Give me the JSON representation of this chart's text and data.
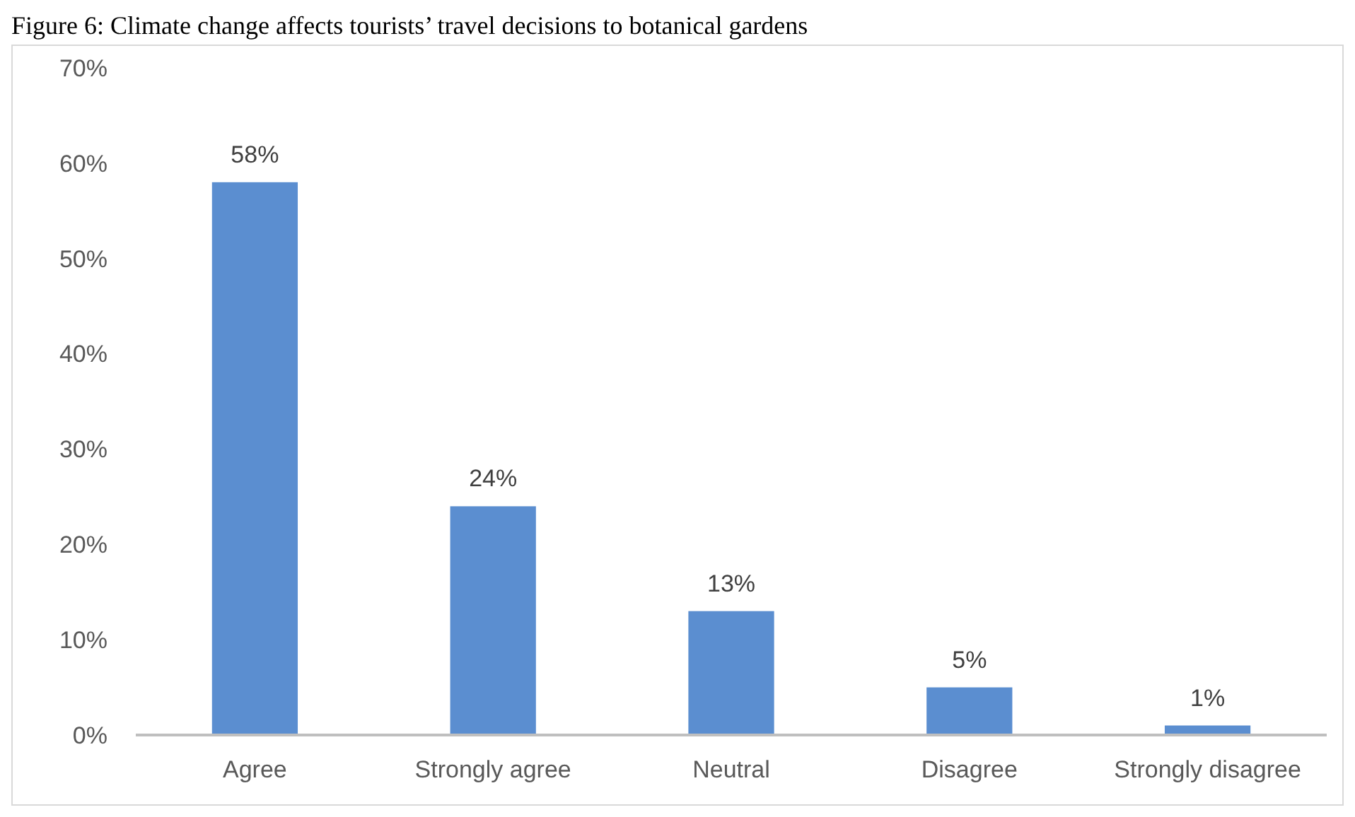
{
  "chart_data": {
    "type": "bar",
    "title": "Figure 6: Climate change affects tourists’ travel decisions to botanical gardens",
    "categories": [
      "Agree",
      "Strongly agree",
      "Neutral",
      "Disagree",
      "Strongly disagree"
    ],
    "values": [
      58,
      24,
      13,
      5,
      1
    ],
    "value_labels": [
      "58%",
      "24%",
      "13%",
      "5%",
      "1%"
    ],
    "color": "#5b8ed0",
    "ylim": [
      0,
      70
    ],
    "yticks": [
      {
        "value": 0,
        "label": "0%"
      },
      {
        "value": 10,
        "label": "10%"
      },
      {
        "value": 20,
        "label": "20%"
      },
      {
        "value": 30,
        "label": "30%"
      },
      {
        "value": 40,
        "label": "40%"
      },
      {
        "value": 50,
        "label": "50%"
      },
      {
        "value": 60,
        "label": "60%"
      },
      {
        "value": 70,
        "label": "70%"
      }
    ],
    "grid": false
  }
}
